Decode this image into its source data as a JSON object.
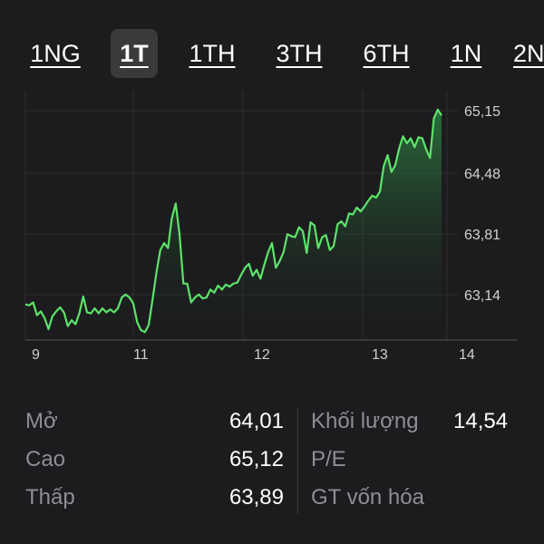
{
  "tabs": [
    {
      "label": "1NG",
      "active": false
    },
    {
      "label": "1T",
      "active": true
    },
    {
      "label": "1TH",
      "active": false
    },
    {
      "label": "3TH",
      "active": false
    },
    {
      "label": "6TH",
      "active": false
    },
    {
      "label": "1N",
      "active": false
    },
    {
      "label": "2N",
      "active": false
    }
  ],
  "chart_data": {
    "type": "area",
    "x_tick_labels": [
      "9",
      "11",
      "12",
      "13",
      "14"
    ],
    "y_tick_labels": [
      "65,15",
      "64,48",
      "63,81",
      "63,14"
    ],
    "ylim": [
      62.85,
      65.28
    ],
    "line_color": "#5de36b",
    "series": [
      {
        "values": [
          63.21,
          63.2,
          63.23,
          63.1,
          63.14,
          63.07,
          62.96,
          63.09,
          63.14,
          63.18,
          63.13,
          62.99,
          63.05,
          63.01,
          63.12,
          63.29,
          63.13,
          63.12,
          63.17,
          63.12,
          63.17,
          63.13,
          63.16,
          63.13,
          63.17,
          63.28,
          63.31,
          63.28,
          63.22,
          63.03,
          62.95,
          62.93,
          63.0,
          63.26,
          63.53,
          63.76,
          63.83,
          63.78,
          64.08,
          64.23,
          63.92,
          63.42,
          63.42,
          63.23,
          63.28,
          63.31,
          63.27,
          63.28,
          63.36,
          63.33,
          63.4,
          63.36,
          63.41,
          63.39,
          63.42,
          63.43,
          63.51,
          63.58,
          63.62,
          63.5,
          63.56,
          63.47,
          63.61,
          63.74,
          63.83,
          63.58,
          63.65,
          63.74,
          63.92,
          63.9,
          63.89,
          63.99,
          63.95,
          63.73,
          64.04,
          64.01,
          63.78,
          63.89,
          63.91,
          63.76,
          63.8,
          64.02,
          64.05,
          64.0,
          64.13,
          64.12,
          64.19,
          64.15,
          64.2,
          64.26,
          64.31,
          64.29,
          64.35,
          64.61,
          64.72,
          64.55,
          64.62,
          64.79,
          64.91,
          64.84,
          64.89,
          64.8,
          64.9,
          64.89,
          64.78,
          64.69,
          65.09,
          65.18,
          65.12
        ]
      }
    ]
  },
  "stats": {
    "open_label": "Mở",
    "open_value": "64,01",
    "high_label": "Cao",
    "high_value": "65,12",
    "low_label": "Thấp",
    "low_value": "63,89",
    "volume_label": "Khối lượng",
    "volume_value": "14,54",
    "pe_label": "P/E",
    "mktcap_label": "GT vốn hóa"
  }
}
